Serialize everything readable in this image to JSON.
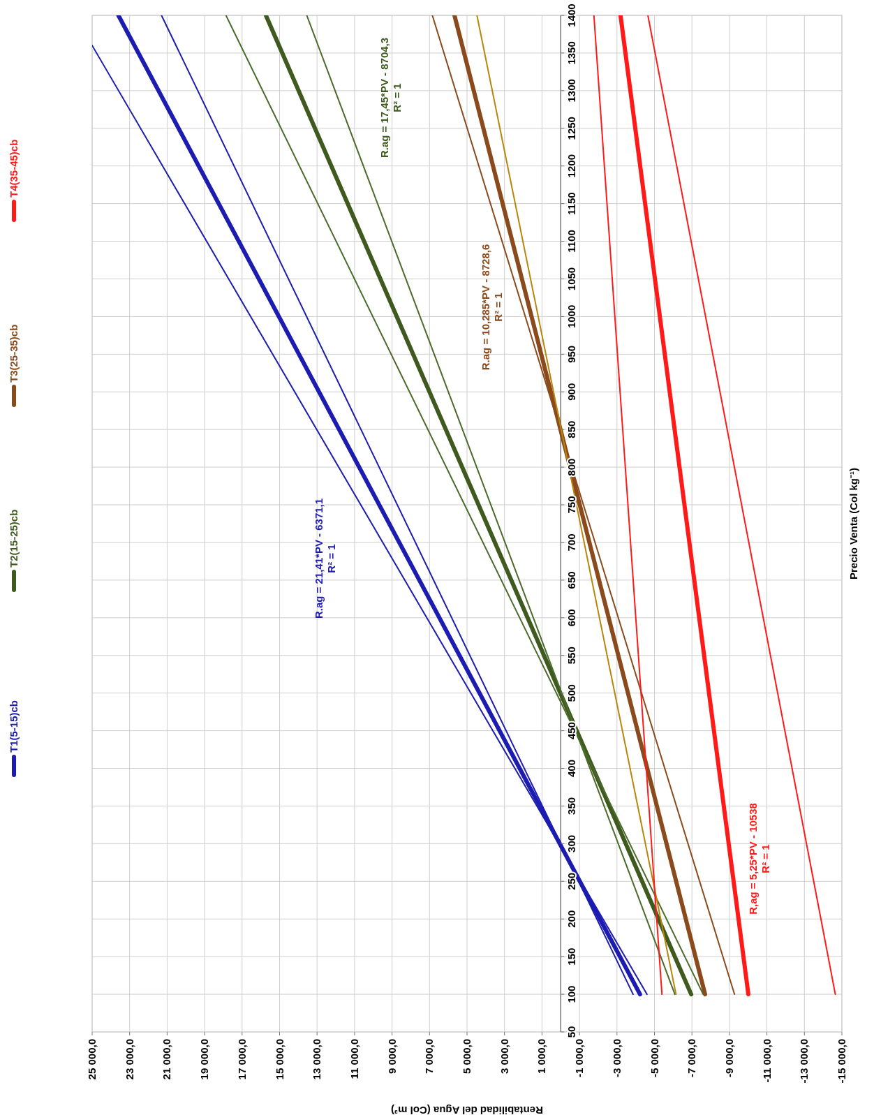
{
  "chart_data": {
    "type": "line",
    "xlabel": "Rentabilidad del Agua (Col m³)",
    "ylabel": "Precio Venta (Col kg⁻¹)",
    "xlim": [
      25000,
      -15000
    ],
    "ylim": [
      50,
      1400
    ],
    "yticks": [
      50,
      100,
      150,
      200,
      250,
      300,
      350,
      400,
      450,
      500,
      550,
      600,
      650,
      700,
      750,
      800,
      850,
      900,
      950,
      1000,
      1050,
      1100,
      1150,
      1200,
      1250,
      1300,
      1350,
      1400
    ],
    "xticks": [
      {
        "value": 25000,
        "label": "25 000,0"
      },
      {
        "value": 23000,
        "label": "23 000,0"
      },
      {
        "value": 21000,
        "label": "21 000,0"
      },
      {
        "value": 19000,
        "label": "19 000,0"
      },
      {
        "value": 17000,
        "label": "17 000,0"
      },
      {
        "value": 15000,
        "label": "15 000,0"
      },
      {
        "value": 13000,
        "label": "13 000,0"
      },
      {
        "value": 11000,
        "label": "11 000,0"
      },
      {
        "value": 9000,
        "label": "9 000,0"
      },
      {
        "value": 7000,
        "label": "7 000,0"
      },
      {
        "value": 5000,
        "label": "5 000,0"
      },
      {
        "value": 3000,
        "label": "3 000,0"
      },
      {
        "value": 1000,
        "label": "1 000,0"
      },
      {
        "value": -1000,
        "label": "-1 000,0"
      },
      {
        "value": -3000,
        "label": "-3 000,0"
      },
      {
        "value": -5000,
        "label": "-5 000,0"
      },
      {
        "value": -7000,
        "label": "-7 000,0"
      },
      {
        "value": -9000,
        "label": "-9 000,0"
      },
      {
        "value": -11000,
        "label": "-11 000,0"
      },
      {
        "value": -13000,
        "label": "-13 000,0"
      },
      {
        "value": -15000,
        "label": "-15 000,0"
      }
    ],
    "grid": true,
    "legend": "left",
    "series": [
      {
        "name": "T1(5-15)cb",
        "color": "#1c1cb0",
        "x": [
          -4230,
          23600
        ],
        "values": [
          100,
          1400
        ]
      },
      {
        "name": "T2(15-25)cb",
        "color": "#3f5a1f",
        "x": [
          -6960,
          15730
        ],
        "values": [
          100,
          1400
        ]
      },
      {
        "name": "T3(25-35)cb",
        "color": "#8b4a1c",
        "x": [
          -7700,
          5670
        ],
        "values": [
          100,
          1400
        ]
      },
      {
        "name": "T4(35-45)cb",
        "color": "#ff1a1a",
        "x": [
          -10010,
          -3190
        ],
        "values": [
          100,
          1400
        ]
      },
      {
        "color": "#1c1cb0",
        "x": [
          -4600,
          25000
        ],
        "values": [
          100,
          1360
        ]
      },
      {
        "color": "#1c1cb0",
        "x": [
          -3860,
          21300
        ],
        "values": [
          100,
          1400
        ]
      },
      {
        "color": "#4a6b2a",
        "x": [
          -7600,
          17860
        ],
        "values": [
          100,
          1400
        ]
      },
      {
        "color": "#4a6b2a",
        "x": [
          -6090,
          13550
        ],
        "values": [
          100,
          1400
        ]
      },
      {
        "color": "#8b4a1c",
        "x": [
          -9270,
          6850
        ],
        "values": [
          100,
          1400
        ]
      },
      {
        "color": "#b8860b",
        "x": [
          -6150,
          4470
        ],
        "values": [
          100,
          1400
        ]
      },
      {
        "color": "#ff1a1a",
        "x": [
          -14650,
          -4650
        ],
        "values": [
          100,
          1400
        ]
      },
      {
        "color": "#ff1a1a",
        "x": [
          -5400,
          -1770
        ],
        "values": [
          100,
          1400
        ]
      }
    ],
    "annotations": [
      "R.ag = 21,41*PV - 6371,1\nR² = 1",
      "R.ag = 17,45*PV - 8704,3\nR² = 1",
      "R.ag = 10,285*PV - 8728,6\nR² = 1",
      "R,ag = 5,25*PV - 10538\nR² = 1"
    ]
  }
}
